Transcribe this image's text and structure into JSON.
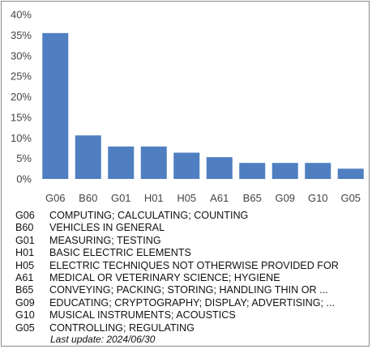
{
  "chart_data": {
    "type": "bar",
    "categories": [
      "G06",
      "B60",
      "G01",
      "H01",
      "H05",
      "A61",
      "B65",
      "G09",
      "G10",
      "G05"
    ],
    "values": [
      35.5,
      10.6,
      7.9,
      7.9,
      6.4,
      5.3,
      3.9,
      3.9,
      3.9,
      2.5
    ],
    "ylim": [
      0,
      40
    ],
    "yticks": [
      0,
      5,
      10,
      15,
      20,
      25,
      30,
      35,
      40
    ],
    "ytick_labels": [
      "0%",
      "5%",
      "10%",
      "15%",
      "20%",
      "25%",
      "30%",
      "35%",
      "40%"
    ],
    "grid": false,
    "bar_color": "#4f7fc1",
    "title": "",
    "xlabel": "",
    "ylabel": ""
  },
  "legend": [
    {
      "code": "G06",
      "desc": "COMPUTING; CALCULATING; COUNTING"
    },
    {
      "code": "B60",
      "desc": "VEHICLES IN GENERAL"
    },
    {
      "code": "G01",
      "desc": "MEASURING; TESTING"
    },
    {
      "code": "H01",
      "desc": "BASIC ELECTRIC ELEMENTS"
    },
    {
      "code": "H05",
      "desc": "ELECTRIC TECHNIQUES NOT OTHERWISE PROVIDED FOR"
    },
    {
      "code": "A61",
      "desc": "MEDICAL OR VETERINARY SCIENCE; HYGIENE"
    },
    {
      "code": "B65",
      "desc": "CONVEYING; PACKING; STORING; HANDLING THIN OR ..."
    },
    {
      "code": "G09",
      "desc": "EDUCATING; CRYPTOGRAPHY; DISPLAY; ADVERTISING; ..."
    },
    {
      "code": "G10",
      "desc": "MUSICAL INSTRUMENTS; ACOUSTICS"
    },
    {
      "code": "G05",
      "desc": "CONTROLLING; REGULATING"
    }
  ],
  "last_update": "Last update:  2024/06/30"
}
